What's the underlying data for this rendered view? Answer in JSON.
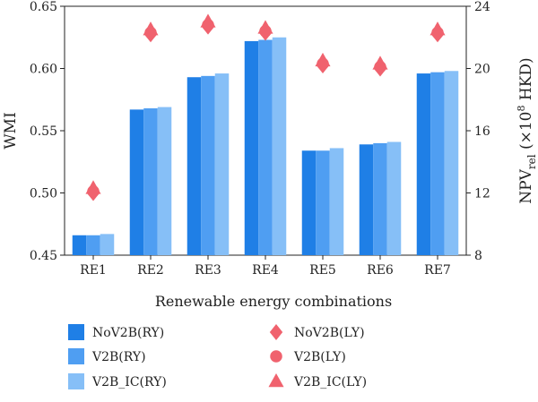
{
  "chart_data": {
    "type": "bar",
    "xlabel": "Renewable energy combinations",
    "ylabel_left": "WMI",
    "ylabel_right_base": "NPV",
    "ylabel_right_sub": "rel",
    "ylabel_right_unit_open": " (×10",
    "ylabel_right_unit_exp": "8",
    "ylabel_right_unit_close": " HKD)",
    "ylim_left": [
      0.45,
      0.65
    ],
    "yticks_left": [
      "0.45",
      "0.50",
      "0.55",
      "0.60",
      "0.65"
    ],
    "ylim_right": [
      8,
      24
    ],
    "yticks_right": [
      "8",
      "12",
      "16",
      "20",
      "24"
    ],
    "categories": [
      "RE1",
      "RE2",
      "RE3",
      "RE4",
      "RE5",
      "RE6",
      "RE7"
    ],
    "bar_series": [
      {
        "name": "NoV2B(RY)",
        "color": "#1f7fe6",
        "values": [
          0.466,
          0.567,
          0.593,
          0.622,
          0.534,
          0.539,
          0.596
        ]
      },
      {
        "name": "V2B(RY)",
        "color": "#4f9ef2",
        "values": [
          0.466,
          0.568,
          0.594,
          0.623,
          0.534,
          0.54,
          0.597
        ]
      },
      {
        "name": "V2B_IC(RY)",
        "color": "#86bff7",
        "values": [
          0.467,
          0.569,
          0.596,
          0.625,
          0.536,
          0.541,
          0.598
        ]
      }
    ],
    "marker_series": [
      {
        "name": "NoV2B(LY)",
        "shape": "diamond",
        "color": "#f0626e",
        "values": [
          12.0,
          22.2,
          22.7,
          22.3,
          20.2,
          20.0,
          22.2
        ]
      },
      {
        "name": "V2B(LY)",
        "shape": "circle",
        "color": "#f0626e",
        "values": [
          12.1,
          22.3,
          22.8,
          22.4,
          20.3,
          20.1,
          22.3
        ]
      },
      {
        "name": "V2B_IC(LY)",
        "shape": "triangle",
        "color": "#f0626e",
        "values": [
          12.3,
          22.5,
          23.0,
          22.6,
          20.5,
          20.3,
          22.5
        ]
      }
    ],
    "grid": false,
    "legend_position": "bottom"
  }
}
